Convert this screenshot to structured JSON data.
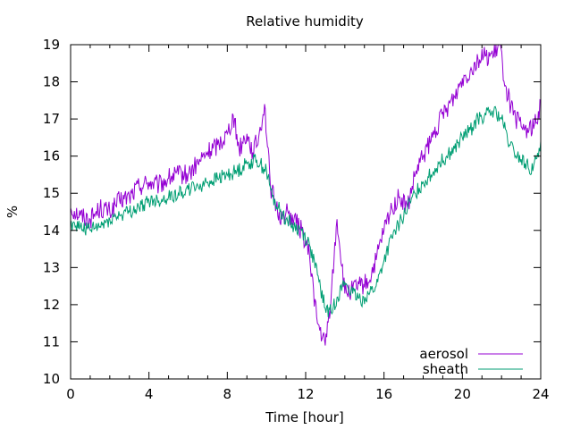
{
  "chart_data": {
    "type": "line",
    "title": "Relative humidity",
    "xlabel": "Time [hour]",
    "ylabel": "%",
    "xlim": [
      0,
      24
    ],
    "ylim": [
      10,
      19
    ],
    "x_ticks": [
      0,
      4,
      8,
      12,
      16,
      20,
      24
    ],
    "y_ticks": [
      10,
      11,
      12,
      13,
      14,
      15,
      16,
      17,
      18,
      19
    ],
    "grid": false,
    "legend_position": "bottom-right",
    "series": [
      {
        "name": "aerosol",
        "color": "#9400d3",
        "x": [
          0,
          0.5,
          1,
          1.5,
          2,
          2.5,
          3,
          3.5,
          4,
          4.5,
          5,
          5.5,
          6,
          6.5,
          7,
          7.5,
          8,
          8.3,
          8.6,
          9,
          9.3,
          9.6,
          9.9,
          10.2,
          10.5,
          10.8,
          11,
          11.4,
          11.8,
          12.2,
          12.6,
          13,
          13.3,
          13.6,
          14,
          14.4,
          14.8,
          15.2,
          15.6,
          16,
          16.4,
          16.8,
          17.2,
          17.6,
          18,
          18.4,
          18.8,
          19.2,
          19.6,
          20,
          20.4,
          20.8,
          21.2,
          21.6,
          21.9,
          22.2,
          22.6,
          23,
          23.4,
          23.8,
          24
        ],
        "y": [
          14.6,
          14.4,
          14.3,
          14.6,
          14.5,
          14.8,
          14.9,
          15.2,
          15.3,
          15.2,
          15.4,
          15.5,
          15.5,
          15.8,
          16.1,
          16.3,
          16.6,
          17.1,
          16.2,
          16.6,
          16.1,
          16.5,
          17.4,
          15.2,
          14.6,
          14.3,
          14.5,
          14.3,
          14.0,
          13.3,
          11.5,
          10.9,
          12.2,
          14.3,
          12.3,
          12.4,
          12.5,
          12.6,
          13.2,
          14.0,
          14.6,
          14.9,
          14.6,
          15.5,
          16.0,
          16.4,
          16.9,
          17.3,
          17.6,
          18.1,
          18.3,
          18.6,
          18.7,
          18.7,
          19.0,
          17.9,
          17.1,
          16.8,
          16.7,
          16.9,
          17.5
        ]
      },
      {
        "name": "sheath",
        "color": "#009e73",
        "x": [
          0,
          0.5,
          1,
          1.5,
          2,
          2.5,
          3,
          3.5,
          4,
          4.5,
          5,
          5.5,
          6,
          6.5,
          7,
          7.5,
          8,
          8.5,
          9,
          9.5,
          10,
          10.3,
          10.6,
          11,
          11.4,
          11.8,
          12.2,
          12.6,
          13,
          13.3,
          13.6,
          14,
          14.4,
          14.8,
          15.2,
          15.6,
          16,
          16.4,
          16.8,
          17.2,
          17.6,
          18,
          18.4,
          18.8,
          19.2,
          19.6,
          20,
          20.4,
          20.8,
          21.2,
          21.6,
          22,
          22.4,
          22.8,
          23.2,
          23.6,
          24
        ],
        "y": [
          14.2,
          14.1,
          14.0,
          14.1,
          14.3,
          14.4,
          14.5,
          14.6,
          14.8,
          14.8,
          14.9,
          15.0,
          15.1,
          15.2,
          15.3,
          15.4,
          15.5,
          15.6,
          15.8,
          15.9,
          15.6,
          14.9,
          14.6,
          14.3,
          14.1,
          14.0,
          13.6,
          12.8,
          11.9,
          11.8,
          12.2,
          12.6,
          12.3,
          12.1,
          12.3,
          12.5,
          13.2,
          13.8,
          14.2,
          14.6,
          15.0,
          15.3,
          15.5,
          15.8,
          16.0,
          16.2,
          16.5,
          16.7,
          17.0,
          17.1,
          17.2,
          17.0,
          16.3,
          16.0,
          15.8,
          15.6,
          16.4
        ]
      }
    ]
  }
}
